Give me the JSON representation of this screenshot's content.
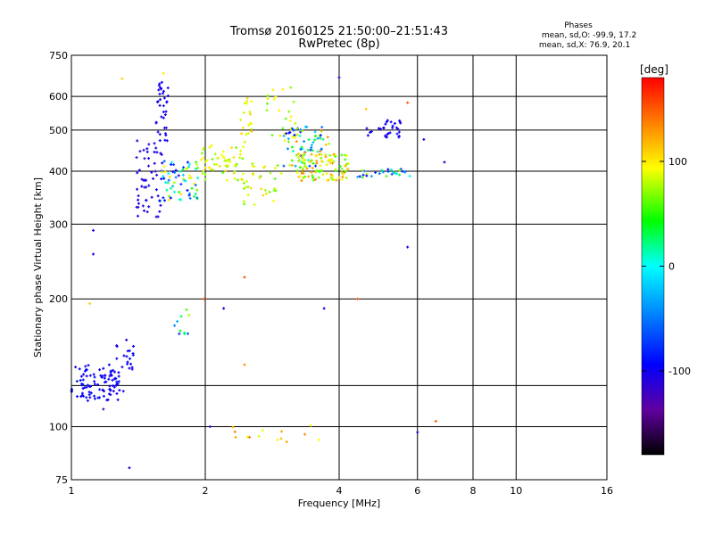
{
  "header": {
    "title": "Tromsø 20160125 21:50:00–21:51:43",
    "subtitle": "RwPretec (8p)"
  },
  "stats": {
    "title": "Phases",
    "line_o": "mean, sd,O: -99.9, 17.2",
    "line_x": "mean, sd,X:  76.9, 20.1"
  },
  "colorbar": {
    "label": "[deg]",
    "ticks": [
      {
        "label": "100",
        "value": 100
      },
      {
        "label": "0",
        "value": 0
      },
      {
        "label": "-100",
        "value": -100
      }
    ],
    "range": [
      -180,
      180
    ]
  },
  "chart_data": {
    "type": "scatter",
    "xlabel": "Frequency [MHz]",
    "ylabel": "Stationary phase Virtual Height [km]",
    "xscale": "log",
    "yscale": "log",
    "xlim": [
      1,
      16
    ],
    "ylim": [
      75,
      750
    ],
    "xticks": [
      {
        "label": "1",
        "value": 1
      },
      {
        "label": "2",
        "value": 2
      },
      {
        "label": "4",
        "value": 4
      },
      {
        "label": "6",
        "value": 6
      },
      {
        "label": "8",
        "value": 8
      },
      {
        "label": "10",
        "value": 10
      },
      {
        "label": "16",
        "value": 16
      }
    ],
    "yticks": [
      {
        "label": "75",
        "value": 75
      },
      {
        "label": "100",
        "value": 100
      },
      {
        "label": "200",
        "value": 200
      },
      {
        "label": "300",
        "value": 300
      },
      {
        "label": "400",
        "value": 400
      },
      {
        "label": "500",
        "value": 500
      },
      {
        "label": "600",
        "value": 600
      },
      {
        "label": "750",
        "value": 750
      }
    ],
    "xgrid": [
      2,
      4,
      6,
      8,
      10
    ],
    "ygrid": [
      100,
      125,
      200,
      300,
      400,
      500,
      600
    ],
    "color_by": "phase [deg]",
    "clusters": [
      {
        "x": [
          1.0,
          1.28
        ],
        "y": [
          115,
          140
        ],
        "phase": [
          -110,
          -85
        ],
        "n": 90
      },
      {
        "x": [
          1.25,
          1.38
        ],
        "y": [
          120,
          165
        ],
        "phase": [
          -110,
          -90
        ],
        "n": 25
      },
      {
        "x": [
          1.4,
          1.6
        ],
        "y": [
          310,
          480
        ],
        "phase": [
          -115,
          -95
        ],
        "n": 55
      },
      {
        "x": [
          1.55,
          1.65
        ],
        "y": [
          470,
          650
        ],
        "phase": [
          -110,
          -95
        ],
        "n": 35
      },
      {
        "x": [
          1.58,
          1.95
        ],
        "y": [
          340,
          430
        ],
        "phase": [
          -110,
          110
        ],
        "n": 70
      },
      {
        "x": [
          1.7,
          1.85
        ],
        "y": [
          160,
          190
        ],
        "phase": [
          -100,
          90
        ],
        "n": 10
      },
      {
        "x": [
          1.95,
          2.45
        ],
        "y": [
          380,
          460
        ],
        "phase": [
          60,
          110
        ],
        "n": 55
      },
      {
        "x": [
          2.4,
          2.55
        ],
        "y": [
          460,
          600
        ],
        "phase": [
          80,
          115
        ],
        "n": 20
      },
      {
        "x": [
          2.4,
          3.0
        ],
        "y": [
          330,
          420
        ],
        "phase": [
          60,
          110
        ],
        "n": 35
      },
      {
        "x": [
          2.75,
          3.2
        ],
        "y": [
          480,
          640
        ],
        "phase": [
          60,
          110
        ],
        "n": 25
      },
      {
        "x": [
          3.0,
          3.8
        ],
        "y": [
          410,
          510
        ],
        "phase": [
          -110,
          140
        ],
        "n": 80
      },
      {
        "x": [
          3.2,
          4.2
        ],
        "y": [
          380,
          440
        ],
        "phase": [
          50,
          140
        ],
        "n": 100
      },
      {
        "x": [
          4.6,
          5.6
        ],
        "y": [
          480,
          530
        ],
        "phase": [
          -110,
          -95
        ],
        "n": 30
      },
      {
        "x": [
          4.4,
          5.8
        ],
        "y": [
          385,
          405
        ],
        "phase": [
          -110,
          80
        ],
        "n": 30
      },
      {
        "x": [
          2.2,
          3.8
        ],
        "y": [
          92,
          102
        ],
        "phase": [
          80,
          150
        ],
        "n": 14
      }
    ],
    "points": [
      {
        "x": 1.12,
        "y": 290,
        "phase": -100
      },
      {
        "x": 1.12,
        "y": 255,
        "phase": -100
      },
      {
        "x": 1.1,
        "y": 195,
        "phase": 110
      },
      {
        "x": 1.18,
        "y": 110,
        "phase": -120
      },
      {
        "x": 1.35,
        "y": 80,
        "phase": -110
      },
      {
        "x": 1.3,
        "y": 660,
        "phase": 110
      },
      {
        "x": 1.61,
        "y": 680,
        "phase": 100
      },
      {
        "x": 1.99,
        "y": 200,
        "phase": 150
      },
      {
        "x": 2.2,
        "y": 190,
        "phase": -100
      },
      {
        "x": 2.45,
        "y": 225,
        "phase": 150
      },
      {
        "x": 2.45,
        "y": 140,
        "phase": 130
      },
      {
        "x": 2.05,
        "y": 100,
        "phase": -110
      },
      {
        "x": 3.7,
        "y": 190,
        "phase": -110
      },
      {
        "x": 4.4,
        "y": 200,
        "phase": 150
      },
      {
        "x": 4.0,
        "y": 665,
        "phase": -110
      },
      {
        "x": 4.6,
        "y": 560,
        "phase": 110
      },
      {
        "x": 5.7,
        "y": 580,
        "phase": 150
      },
      {
        "x": 5.7,
        "y": 265,
        "phase": -100
      },
      {
        "x": 6.0,
        "y": 97,
        "phase": -110
      },
      {
        "x": 6.6,
        "y": 103,
        "phase": 150
      },
      {
        "x": 6.2,
        "y": 475,
        "phase": -110
      },
      {
        "x": 6.9,
        "y": 420,
        "phase": -110
      }
    ]
  }
}
